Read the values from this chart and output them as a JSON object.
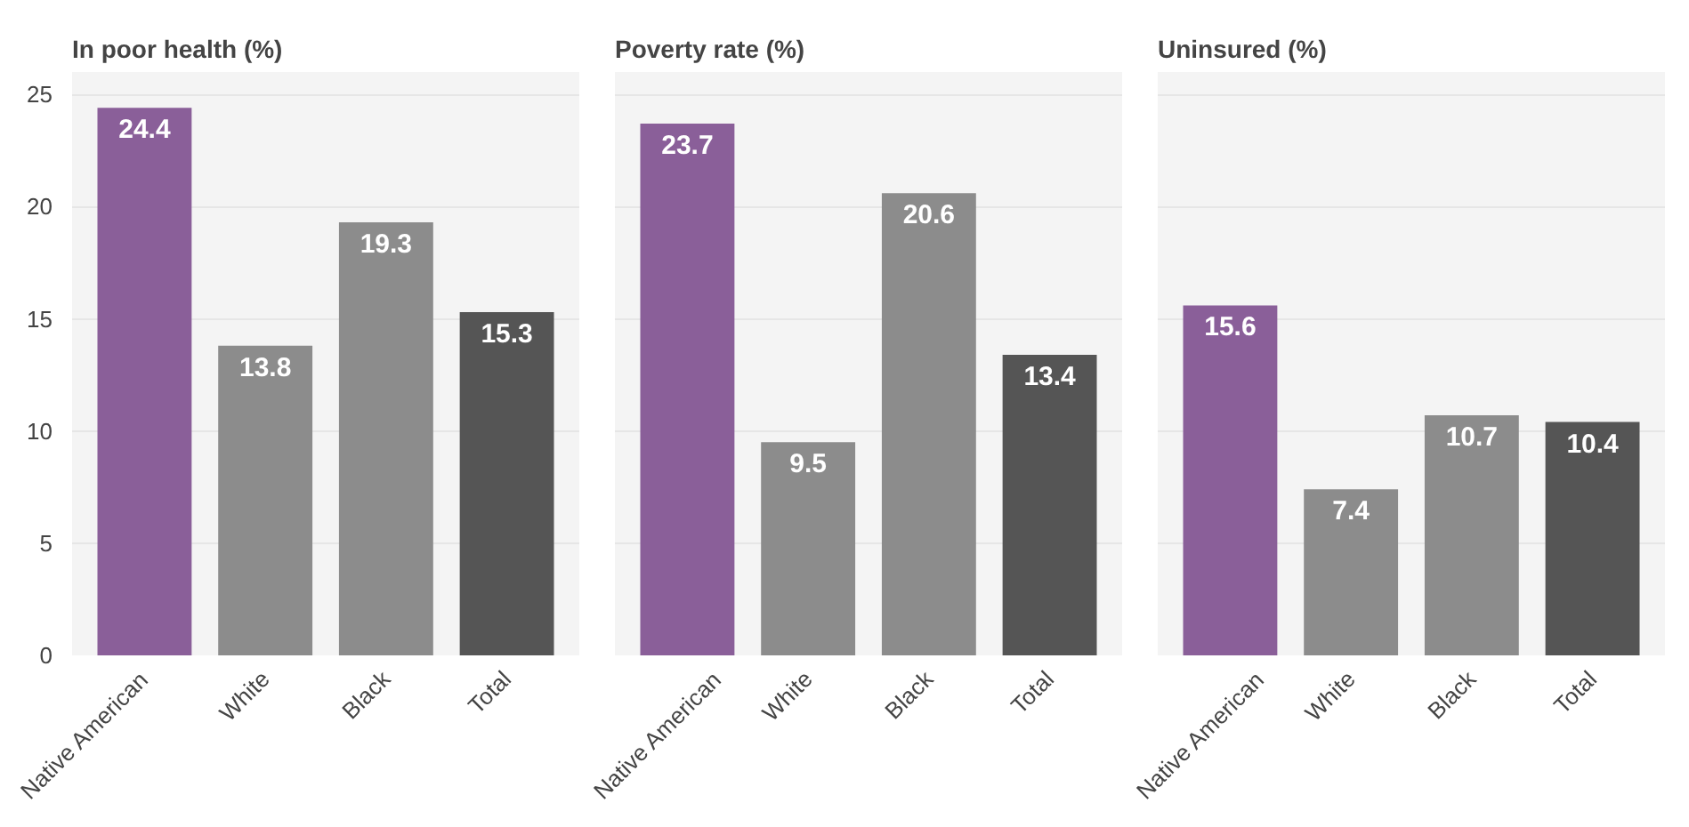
{
  "chart_data": [
    {
      "type": "bar",
      "title": "In poor health (%)",
      "categories": [
        "Native American",
        "White",
        "Black",
        "Total"
      ],
      "values": [
        24.4,
        13.8,
        19.3,
        15.3
      ],
      "colors": [
        "#8a5f99",
        "#8c8c8c",
        "#8c8c8c",
        "#555555"
      ],
      "ylim": [
        0,
        26
      ],
      "yticks": [
        0,
        5,
        10,
        15,
        20,
        25
      ],
      "grid": "y",
      "data_labels": true
    },
    {
      "type": "bar",
      "title": "Poverty rate (%)",
      "categories": [
        "Native American",
        "White",
        "Black",
        "Total"
      ],
      "values": [
        23.7,
        9.5,
        20.6,
        13.4
      ],
      "colors": [
        "#8a5f99",
        "#8c8c8c",
        "#8c8c8c",
        "#555555"
      ],
      "ylim": [
        0,
        26
      ],
      "yticks": [
        0,
        5,
        10,
        15,
        20,
        25
      ],
      "grid": "y",
      "data_labels": true,
      "tick_labels": "x"
    },
    {
      "type": "bar",
      "title": "Uninsured (%)",
      "categories": [
        "Native American",
        "White",
        "Black",
        "Total"
      ],
      "values": [
        15.6,
        7.4,
        10.7,
        10.4
      ],
      "colors": [
        "#8a5f99",
        "#8c8c8c",
        "#8c8c8c",
        "#555555"
      ],
      "ylim": [
        0,
        26
      ],
      "yticks": [
        0,
        5,
        10,
        15,
        20,
        25
      ],
      "grid": "y",
      "data_labels": true,
      "tick_labels": "x"
    }
  ]
}
